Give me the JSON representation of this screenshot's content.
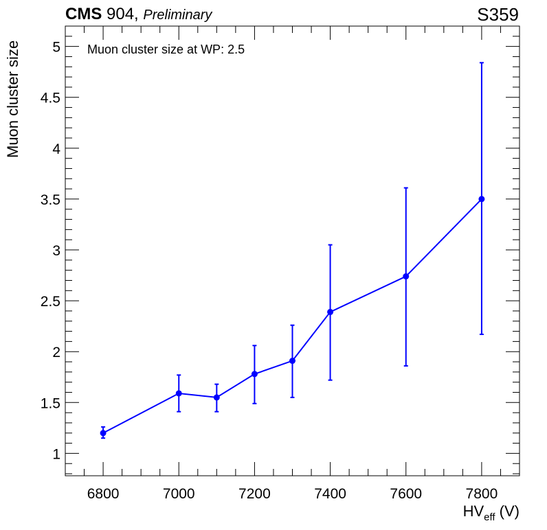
{
  "header": {
    "experiment": "CMS",
    "facility": " 904, ",
    "status": "Preliminary",
    "tag": "S359"
  },
  "chart_data": {
    "type": "scatter",
    "title": "",
    "annotation": "Muon cluster size at WP: 2.5",
    "xlabel_main": "HV",
    "xlabel_sub": "eff",
    "xlabel_unit": " (V)",
    "ylabel": "Muon cluster size",
    "xlim": [
      6700,
      7900
    ],
    "ylim": [
      0.78,
      5.2
    ],
    "x_ticks": [
      6800,
      7000,
      7200,
      7400,
      7600,
      7800
    ],
    "y_ticks": [
      1,
      1.5,
      2,
      2.5,
      3,
      3.5,
      4,
      4.5,
      5
    ],
    "x_minor_step": 50,
    "y_minor_step": 0.1,
    "grid": false,
    "series": [
      {
        "color": "#0000ff",
        "points": [
          {
            "x": 6800,
            "y": 1.2,
            "ylow": 1.15,
            "yhigh": 1.26
          },
          {
            "x": 7000,
            "y": 1.59,
            "ylow": 1.41,
            "yhigh": 1.77
          },
          {
            "x": 7100,
            "y": 1.55,
            "ylow": 1.41,
            "yhigh": 1.68
          },
          {
            "x": 7200,
            "y": 1.78,
            "ylow": 1.49,
            "yhigh": 2.06
          },
          {
            "x": 7300,
            "y": 1.91,
            "ylow": 1.55,
            "yhigh": 2.26
          },
          {
            "x": 7400,
            "y": 2.39,
            "ylow": 1.72,
            "yhigh": 3.05
          },
          {
            "x": 7600,
            "y": 2.74,
            "ylow": 1.86,
            "yhigh": 3.61
          },
          {
            "x": 7800,
            "y": 3.5,
            "ylow": 2.17,
            "yhigh": 4.84
          }
        ]
      }
    ]
  }
}
